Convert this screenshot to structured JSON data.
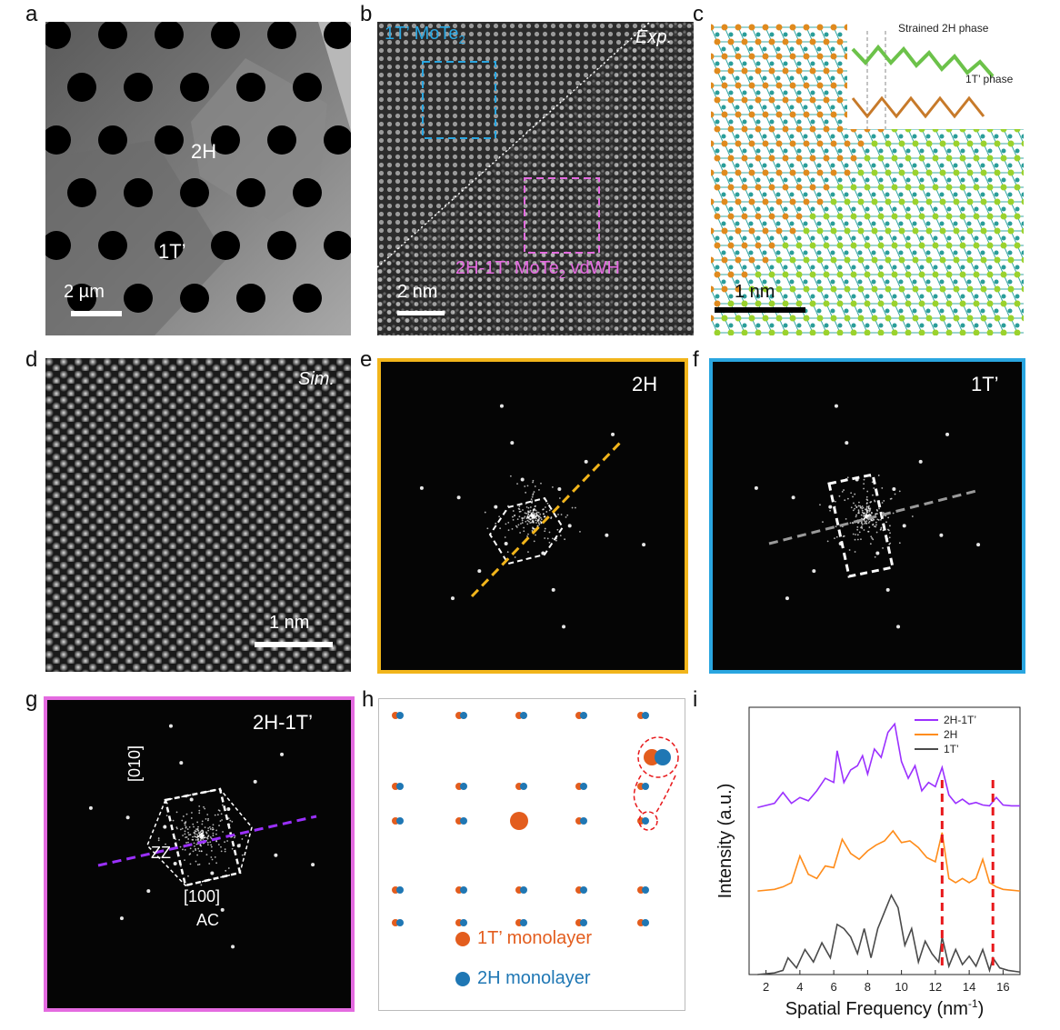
{
  "panels": {
    "a": {
      "letter": "a",
      "label_2h": "2H",
      "label_1t": "1T’",
      "scale": "2 µm"
    },
    "b": {
      "letter": "b",
      "exp": "Exp.",
      "box1_label": "1T’ MoTe",
      "box1_sub": "2",
      "box2_label": "2H-1T’ MoTe",
      "box2_sub": "2",
      "box2_suffix": " vdWH",
      "scale": "2 nm"
    },
    "c": {
      "letter": "c",
      "inset_top": "Strained 2H phase",
      "inset_bottom": "1T’ phase",
      "scale": "1 nm"
    },
    "d": {
      "letter": "d",
      "sim": "Sim.",
      "scale": "1 nm"
    },
    "e": {
      "letter": "e",
      "label": "2H"
    },
    "f": {
      "letter": "f",
      "label": "1T’"
    },
    "g": {
      "letter": "g",
      "label": "2H-1T’",
      "dir_010": "[010]",
      "dir_100": "[100]",
      "zz": "ZZ",
      "ac": "AC"
    },
    "h": {
      "letter": "h",
      "legend_1t": "1T’ monolayer",
      "legend_2h": "2H monolayer"
    },
    "i": {
      "letter": "i"
    }
  },
  "colors": {
    "orange_1t": "#e35d1e",
    "blue_2h": "#1f77b4",
    "yellow_frame": "#f2b51b",
    "blue_frame": "#2aa6e0",
    "magenta_frame": "#e46be0",
    "purple_line": "#9b30ff",
    "orange_line": "#ff8c1a",
    "gray_line": "#4a4a4a",
    "red_marker": "#e8181b"
  },
  "chart_data": {
    "type": "line",
    "xlabel": "Spatial Frequency (nm",
    "xlabel_sup": "-1",
    "xlabel_end": ")",
    "ylabel": "Intensity (a.u.)",
    "xlim": [
      1,
      17
    ],
    "xticks": [
      2,
      4,
      6,
      8,
      10,
      12,
      14,
      16
    ],
    "legend_position": "top-right",
    "markers": [
      12.4,
      15.4
    ],
    "series": [
      {
        "name": "2H-1T’",
        "color": "#9b30ff",
        "offset": 2.0,
        "x": [
          1.5,
          2.5,
          3.0,
          3.5,
          4.0,
          4.5,
          5.0,
          5.5,
          6.0,
          6.2,
          6.6,
          7.0,
          7.4,
          7.7,
          8.0,
          8.4,
          8.8,
          9.2,
          9.6,
          10.0,
          10.4,
          10.8,
          11.2,
          11.6,
          12.0,
          12.4,
          12.8,
          13.2,
          13.6,
          14.0,
          14.4,
          14.8,
          15.2,
          15.6,
          16.0,
          16.5,
          17.0
        ],
        "y": [
          0.0,
          0.05,
          0.18,
          0.05,
          0.12,
          0.08,
          0.2,
          0.35,
          0.3,
          0.68,
          0.3,
          0.45,
          0.5,
          0.62,
          0.4,
          0.7,
          0.6,
          0.9,
          1.0,
          0.55,
          0.35,
          0.5,
          0.2,
          0.3,
          0.25,
          0.48,
          0.15,
          0.05,
          0.1,
          0.04,
          0.06,
          0.03,
          0.02,
          0.12,
          0.03,
          0.02,
          0.02
        ]
      },
      {
        "name": "2H",
        "color": "#ff8c1a",
        "offset": 1.0,
        "x": [
          1.5,
          2.5,
          3.0,
          3.5,
          4.0,
          4.5,
          5.0,
          5.5,
          6.0,
          6.5,
          7.0,
          7.5,
          8.0,
          8.5,
          9.0,
          9.5,
          10.0,
          10.5,
          11.0,
          11.5,
          12.0,
          12.4,
          12.8,
          13.2,
          13.6,
          14.0,
          14.4,
          14.8,
          15.2,
          15.6,
          16.0,
          16.5,
          17.0
        ],
        "y": [
          0.0,
          0.02,
          0.05,
          0.1,
          0.42,
          0.2,
          0.15,
          0.3,
          0.28,
          0.62,
          0.45,
          0.38,
          0.48,
          0.55,
          0.6,
          0.72,
          0.58,
          0.6,
          0.52,
          0.4,
          0.35,
          0.7,
          0.15,
          0.1,
          0.15,
          0.1,
          0.15,
          0.38,
          0.1,
          0.05,
          0.02,
          0.01,
          0.0
        ]
      },
      {
        "name": "1T’",
        "color": "#4a4a4a",
        "offset": 0.0,
        "x": [
          1.5,
          2.5,
          3.0,
          3.3,
          3.8,
          4.3,
          4.8,
          5.3,
          5.8,
          6.2,
          6.6,
          7.0,
          7.4,
          7.8,
          8.2,
          8.6,
          9.0,
          9.4,
          9.8,
          10.2,
          10.6,
          11.0,
          11.4,
          11.8,
          12.2,
          12.4,
          12.8,
          13.2,
          13.6,
          14.0,
          14.4,
          14.8,
          15.2,
          15.4,
          15.8,
          16.3,
          17.0
        ],
        "y": [
          0.0,
          0.02,
          0.05,
          0.2,
          0.08,
          0.3,
          0.15,
          0.38,
          0.2,
          0.6,
          0.55,
          0.45,
          0.25,
          0.55,
          0.2,
          0.55,
          0.75,
          0.95,
          0.8,
          0.35,
          0.55,
          0.15,
          0.4,
          0.25,
          0.15,
          0.45,
          0.1,
          0.3,
          0.12,
          0.22,
          0.1,
          0.3,
          0.05,
          0.2,
          0.08,
          0.05,
          0.03
        ]
      }
    ]
  }
}
